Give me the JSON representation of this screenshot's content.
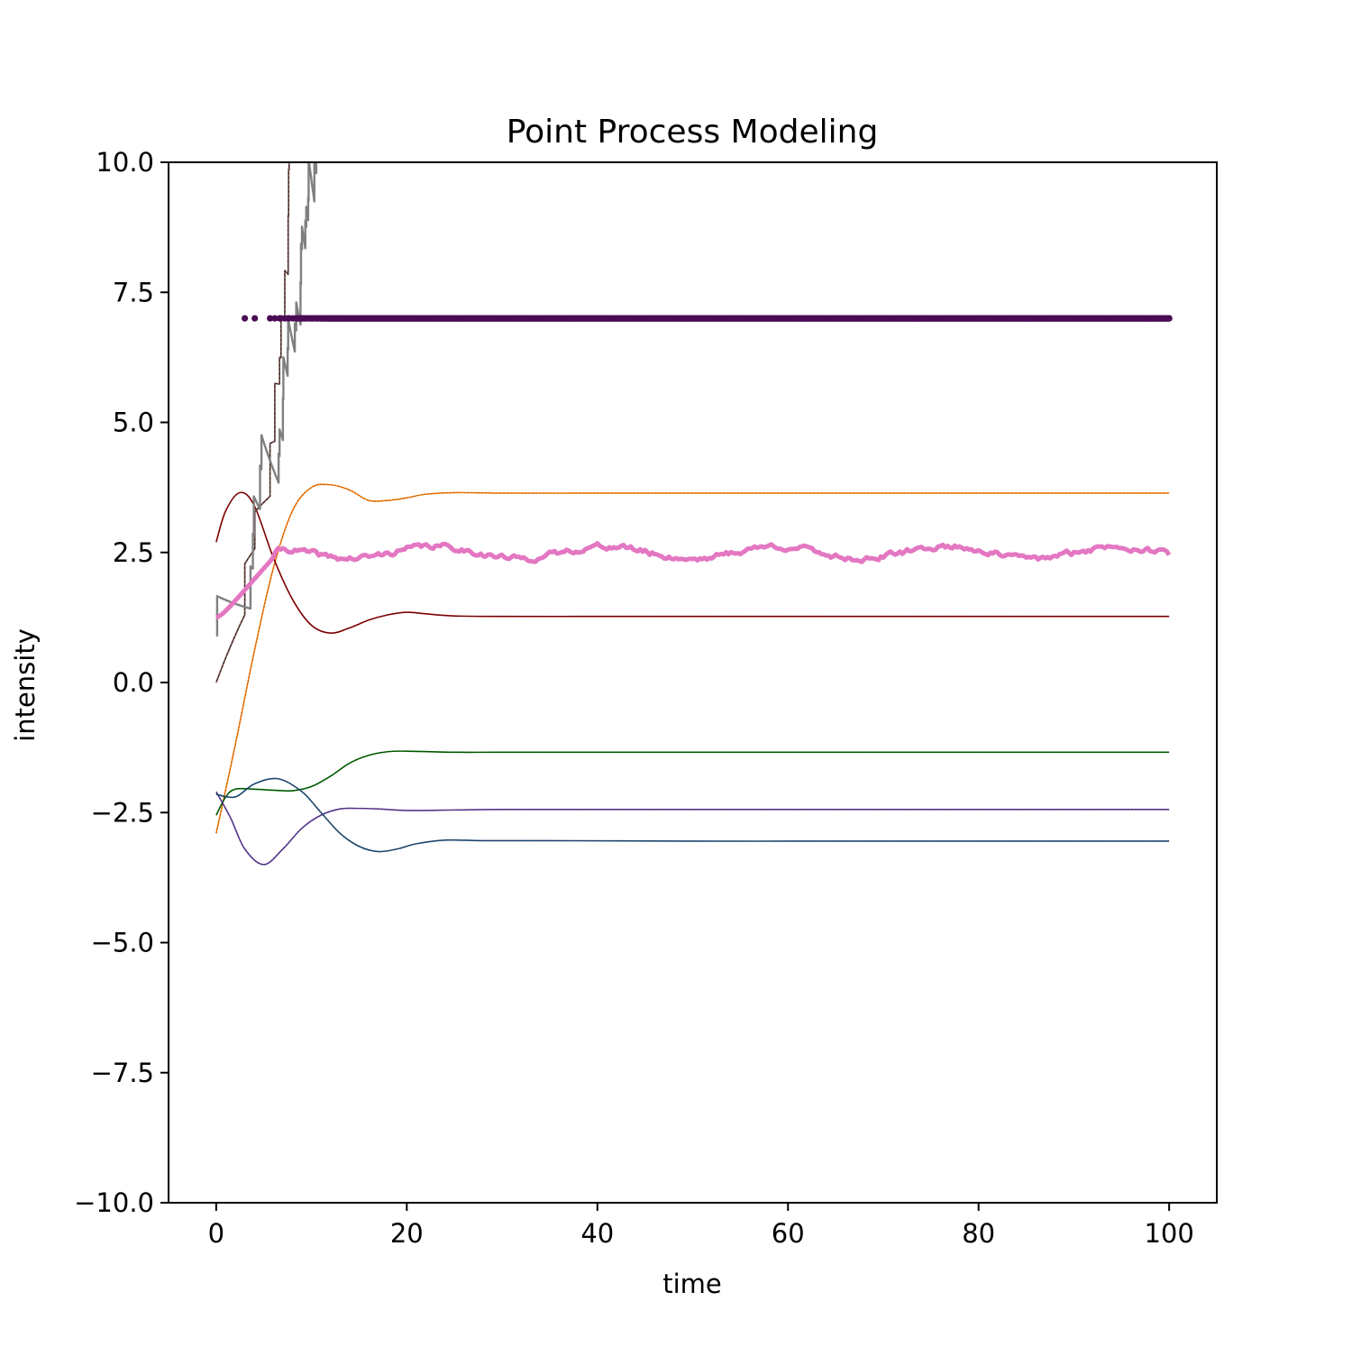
{
  "chart_data": {
    "type": "line",
    "title": "Point Process Modeling",
    "xlabel": "time",
    "ylabel": "intensity",
    "xlim": [
      -5,
      105
    ],
    "ylim": [
      -10,
      10
    ],
    "xticks": [
      0,
      20,
      40,
      60,
      80,
      100
    ],
    "xtick_labels": [
      "0",
      "20",
      "40",
      "60",
      "80",
      "100"
    ],
    "yticks": [
      -10,
      -7.5,
      -5,
      -2.5,
      0,
      2.5,
      5,
      7.5,
      10
    ],
    "ytick_labels": [
      "−10.0",
      "−7.5",
      "−5.0",
      "−2.5",
      "0.0",
      "2.5",
      "5.0",
      "7.5",
      "10.0"
    ],
    "grid": false,
    "series": [
      {
        "kind": "smooth",
        "color": "#ff7f0e",
        "points": [
          [
            0,
            -2.9
          ],
          [
            2,
            -1.2
          ],
          [
            4,
            0.6
          ],
          [
            6,
            2.2
          ],
          [
            8,
            3.3
          ],
          [
            10,
            3.75
          ],
          [
            12,
            3.8
          ],
          [
            14,
            3.7
          ],
          [
            16,
            3.5
          ],
          [
            18,
            3.5
          ],
          [
            20,
            3.55
          ],
          [
            22,
            3.62
          ],
          [
            25,
            3.65
          ],
          [
            30,
            3.64
          ],
          [
            40,
            3.64
          ],
          [
            50,
            3.64
          ],
          [
            60,
            3.64
          ],
          [
            70,
            3.64
          ],
          [
            80,
            3.64
          ],
          [
            90,
            3.64
          ],
          [
            100,
            3.64
          ]
        ]
      },
      {
        "kind": "smooth",
        "color": "#8b0000",
        "points": [
          [
            0,
            2.7
          ],
          [
            1,
            3.3
          ],
          [
            2.5,
            3.65
          ],
          [
            4,
            3.4
          ],
          [
            6,
            2.4
          ],
          [
            8,
            1.6
          ],
          [
            10,
            1.1
          ],
          [
            12,
            0.95
          ],
          [
            14,
            1.05
          ],
          [
            16,
            1.2
          ],
          [
            18,
            1.3
          ],
          [
            20,
            1.35
          ],
          [
            22,
            1.32
          ],
          [
            25,
            1.28
          ],
          [
            30,
            1.27
          ],
          [
            40,
            1.27
          ],
          [
            50,
            1.27
          ],
          [
            60,
            1.27
          ],
          [
            70,
            1.27
          ],
          [
            80,
            1.27
          ],
          [
            90,
            1.27
          ],
          [
            100,
            1.27
          ]
        ]
      },
      {
        "kind": "smooth",
        "color": "#006400",
        "points": [
          [
            0,
            -2.55
          ],
          [
            1,
            -2.2
          ],
          [
            2,
            -2.05
          ],
          [
            4,
            -2.05
          ],
          [
            6,
            -2.07
          ],
          [
            8,
            -2.08
          ],
          [
            10,
            -2.0
          ],
          [
            12,
            -1.8
          ],
          [
            14,
            -1.55
          ],
          [
            16,
            -1.4
          ],
          [
            18,
            -1.33
          ],
          [
            20,
            -1.32
          ],
          [
            25,
            -1.34
          ],
          [
            30,
            -1.34
          ],
          [
            40,
            -1.34
          ],
          [
            50,
            -1.34
          ],
          [
            60,
            -1.34
          ],
          [
            70,
            -1.34
          ],
          [
            80,
            -1.34
          ],
          [
            90,
            -1.34
          ],
          [
            100,
            -1.34
          ]
        ]
      },
      {
        "kind": "smooth",
        "color": "#5e3c99",
        "points": [
          [
            0,
            -2.1
          ],
          [
            1.5,
            -2.6
          ],
          [
            3,
            -3.2
          ],
          [
            5,
            -3.5
          ],
          [
            7,
            -3.2
          ],
          [
            9,
            -2.8
          ],
          [
            11,
            -2.55
          ],
          [
            13,
            -2.43
          ],
          [
            15,
            -2.42
          ],
          [
            17,
            -2.43
          ],
          [
            20,
            -2.46
          ],
          [
            25,
            -2.45
          ],
          [
            30,
            -2.44
          ],
          [
            40,
            -2.44
          ],
          [
            50,
            -2.44
          ],
          [
            60,
            -2.44
          ],
          [
            70,
            -2.44
          ],
          [
            80,
            -2.44
          ],
          [
            90,
            -2.44
          ],
          [
            100,
            -2.44
          ]
        ]
      },
      {
        "kind": "smooth",
        "color": "#1f4e79",
        "points": [
          [
            0,
            -2.15
          ],
          [
            2,
            -2.2
          ],
          [
            4,
            -1.95
          ],
          [
            6.5,
            -1.85
          ],
          [
            9,
            -2.1
          ],
          [
            11,
            -2.5
          ],
          [
            13,
            -2.9
          ],
          [
            15,
            -3.15
          ],
          [
            17,
            -3.25
          ],
          [
            19,
            -3.2
          ],
          [
            21,
            -3.1
          ],
          [
            24,
            -3.03
          ],
          [
            28,
            -3.04
          ],
          [
            35,
            -3.04
          ],
          [
            50,
            -3.05
          ],
          [
            60,
            -3.05
          ],
          [
            70,
            -3.05
          ],
          [
            80,
            -3.05
          ],
          [
            90,
            -3.05
          ],
          [
            100,
            -3.05
          ]
        ]
      },
      {
        "kind": "hawkes",
        "color": "#3b2222",
        "accent": "#e9967a",
        "mu": 5.5,
        "jump": 0.85,
        "decay": 0.09,
        "seed": 7,
        "start": 0
      },
      {
        "kind": "hawkes",
        "color": "#808080",
        "mu": 1.1,
        "jump": 0.6,
        "decay": 0.16,
        "seed": 19,
        "start": 0.9
      },
      {
        "kind": "average",
        "color": "#e377c2",
        "base": 2.5,
        "start": 1.25
      },
      {
        "kind": "events",
        "color": "#4b0b55",
        "y": 7.0
      }
    ]
  }
}
